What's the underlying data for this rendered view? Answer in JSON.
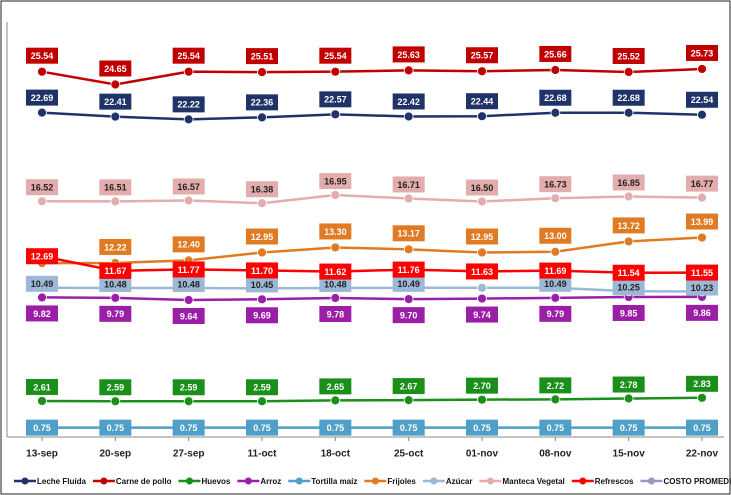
{
  "chart_data": {
    "type": "line",
    "categories": [
      "13-sep",
      "20-sep",
      "27-sep",
      "11-oct",
      "18-oct",
      "25-oct",
      "01-nov",
      "08-nov",
      "15-nov",
      "22-nov"
    ],
    "ylim": [
      0.1,
      29
    ],
    "series": [
      {
        "name": "Leche Fluída",
        "color": "#1f3368",
        "values": [
          22.69,
          22.41,
          22.22,
          22.36,
          22.57,
          22.42,
          22.44,
          22.68,
          22.68,
          22.54
        ],
        "value_labels": [
          "22.69",
          "22.41",
          "22.22",
          "22.36",
          "22.57",
          "22.42",
          "22.44",
          "22.68",
          "22.68",
          "22.54"
        ]
      },
      {
        "name": "Carne de pollo",
        "color": "#c00000",
        "values": [
          25.54,
          24.65,
          25.54,
          25.51,
          25.54,
          25.63,
          25.57,
          25.66,
          25.52,
          25.73
        ],
        "value_labels": [
          "25.54",
          "24.65",
          "25.54",
          "25.51",
          "25.54",
          "25.63",
          "25.57",
          "25.66",
          "25.52",
          "25.73"
        ]
      },
      {
        "name": "Huevos",
        "color": "#1a8f1a",
        "values": [
          2.61,
          2.59,
          2.59,
          2.59,
          2.65,
          2.67,
          2.7,
          2.72,
          2.78,
          2.83
        ],
        "value_labels": [
          "2.61",
          "2.59",
          "2.59",
          "2.59",
          "2.65",
          "2.67",
          "2.70",
          "2.72",
          "2.78",
          "2.83"
        ]
      },
      {
        "name": "Arroz",
        "color": "#9a1fa6",
        "values": [
          9.82,
          9.79,
          9.64,
          9.69,
          9.78,
          9.7,
          9.74,
          9.79,
          9.85,
          9.86
        ],
        "value_labels": [
          "9.82",
          "9.79",
          "9.64",
          "9.69",
          "9.78",
          "9.70",
          "9.74",
          "9.79",
          "9.85",
          "9.86"
        ]
      },
      {
        "name": "Tortilla maíz",
        "color": "#4f9fc8",
        "values": [
          0.75,
          0.75,
          0.75,
          0.75,
          0.75,
          0.75,
          0.75,
          0.75,
          0.75,
          0.75
        ],
        "value_labels": [
          "0.75",
          "0.75",
          "0.75",
          "0.75",
          "0.75",
          "0.75",
          "0.75",
          "0.75",
          "0.75",
          "0.75"
        ]
      },
      {
        "name": "Frijoles",
        "color": "#e07b24",
        "values": [
          12.21,
          12.22,
          12.4,
          12.95,
          13.3,
          13.17,
          12.95,
          13.0,
          13.72,
          13.99
        ],
        "value_labels": [
          null,
          "12.22",
          "12.40",
          "12.95",
          "13.30",
          "13.17",
          "12.95",
          "13.00",
          "13.72",
          "13.99"
        ]
      },
      {
        "name": "Azúcar",
        "color": "#9db8d6",
        "values": [
          10.49,
          10.48,
          10.48,
          10.45,
          10.48,
          10.49,
          10.49,
          10.49,
          10.25,
          10.23
        ],
        "value_labels": [
          "10.49",
          "10.48",
          "10.48",
          "10.45",
          "10.48",
          "10.49",
          null,
          "10.49",
          "10.25",
          "10.23"
        ]
      },
      {
        "name": "Manteca Vegetal",
        "color": "#e3adad",
        "values": [
          16.52,
          16.51,
          16.57,
          16.38,
          16.95,
          16.71,
          16.5,
          16.73,
          16.85,
          16.77
        ],
        "value_labels": [
          "16.52",
          "16.51",
          "16.57",
          "16.38",
          "16.95",
          "16.71",
          "16.50",
          "16.73",
          "16.85",
          "16.77"
        ]
      },
      {
        "name": "Refrescos",
        "color": "#ff0000",
        "values": [
          12.69,
          11.67,
          11.77,
          11.7,
          11.62,
          11.76,
          11.63,
          11.69,
          11.54,
          11.55
        ],
        "value_labels": [
          "12.69",
          "11.67",
          "11.77",
          "11.70",
          "11.62",
          "11.76",
          "11.63",
          "11.69",
          "11.54",
          "11.55"
        ]
      },
      {
        "name": "COSTO PROMEDIO",
        "color": "#a192c6",
        "values": [
          null,
          null,
          null,
          null,
          null,
          null,
          null,
          null,
          null,
          null
        ]
      }
    ]
  }
}
